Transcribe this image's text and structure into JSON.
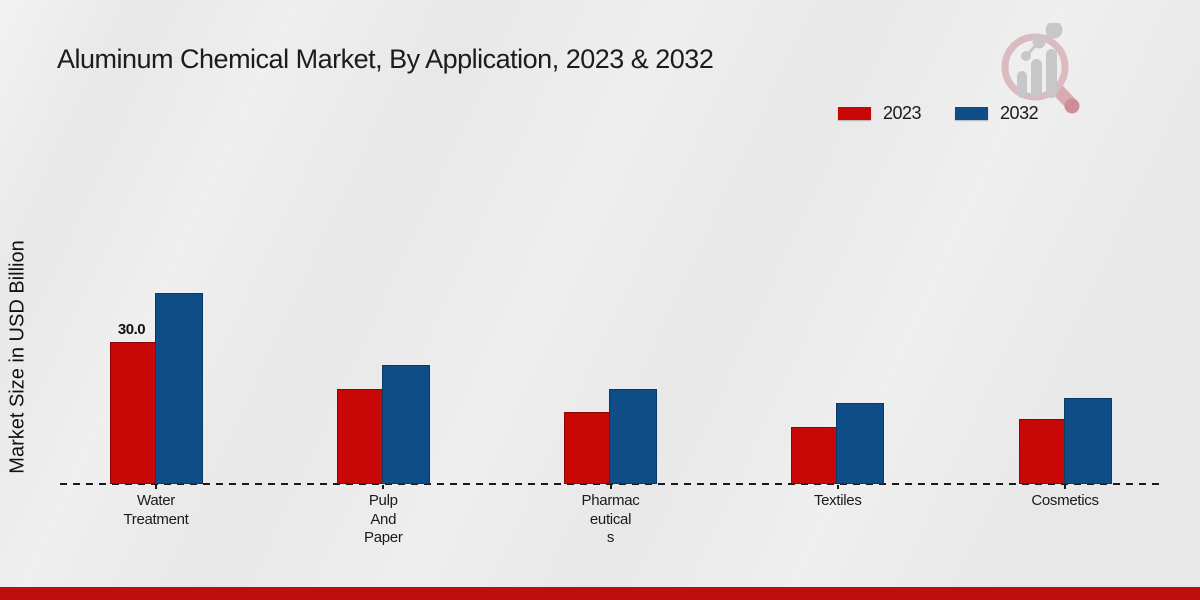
{
  "page": {
    "background": "#e8e8e9",
    "footer_bar_color": "#bf0c0c"
  },
  "header": {
    "title": "Aluminum Chemical Market, By Application, 2023 & 2032"
  },
  "logo": {
    "name": "market-research-watermark-logo",
    "ring_color": "#dcb9be",
    "bars_color": "#c5c5c9",
    "handle_color": "#d8a8ae"
  },
  "legend": {
    "items": [
      {
        "label": "2023",
        "color": "#c80707"
      },
      {
        "label": "2032",
        "color": "#0e4d87"
      }
    ]
  },
  "chart_data": {
    "type": "bar",
    "title": "Aluminum Chemical Market, By Application, 2023 & 2032",
    "xlabel": "",
    "ylabel": "Market Size in USD Billion",
    "categories": [
      "Water Treatment",
      "Pulp And Paper",
      "Pharmaceuticals",
      "Textiles",
      "Cosmetics"
    ],
    "category_label_lines": [
      [
        "Water",
        "Treatment"
      ],
      [
        "Pulp",
        "And",
        "Paper"
      ],
      [
        "Pharmac",
        "eutical",
        "s"
      ],
      [
        "Textiles"
      ],
      [
        "Cosmetics"
      ]
    ],
    "series": [
      {
        "name": "2023",
        "color": "#c80707",
        "border_color": "#8f0404",
        "values": [
          30.0,
          20.0,
          15.2,
          12.0,
          13.8
        ],
        "value_labels": [
          "30.0",
          "",
          "",
          "",
          ""
        ]
      },
      {
        "name": "2032",
        "color": "#0e4d87",
        "border_color": "#093a66",
        "values": [
          40.3,
          25.1,
          20.0,
          17.1,
          18.2
        ],
        "value_labels": [
          "",
          "",
          "",
          "",
          ""
        ]
      }
    ],
    "ylim": [
      0,
      45
    ],
    "grid": false,
    "baseline_style": "dashed",
    "legend_position": "top-right"
  }
}
